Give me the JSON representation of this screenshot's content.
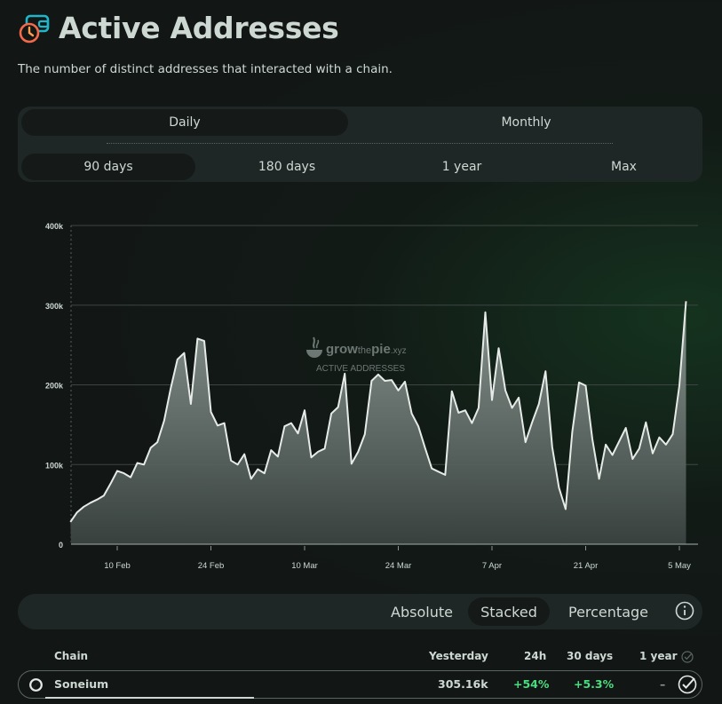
{
  "header": {
    "title": "Active Addresses",
    "description": "The number of distinct addresses that interacted with a chain."
  },
  "timespan": {
    "interval_tabs": [
      "Daily",
      "Monthly"
    ],
    "interval_active": "Daily",
    "range_tabs": [
      "90 days",
      "180 days",
      "1 year",
      "Max"
    ],
    "range_active": "90 days"
  },
  "watermark": {
    "brand_prefix": "grow",
    "brand_mid": "the",
    "brand_pie": "pie",
    "brand_suffix": ".xyz",
    "label": "ACTIVE ADDRESSES"
  },
  "chart_data": {
    "type": "area",
    "ylim": [
      0,
      400000
    ],
    "yticks": [
      0,
      100000,
      200000,
      300000,
      400000
    ],
    "ytick_labels": [
      "0",
      "100k",
      "200k",
      "300k",
      "400k"
    ],
    "xticks": [
      {
        "date": "2025-02-10",
        "label": "10 Feb"
      },
      {
        "date": "2025-02-24",
        "label": "24 Feb"
      },
      {
        "date": "2025-03-10",
        "label": "10 Mar"
      },
      {
        "date": "2025-03-24",
        "label": "24 Mar"
      },
      {
        "date": "2025-04-07",
        "label": "7 Apr"
      },
      {
        "date": "2025-04-21",
        "label": "21 Apr"
      },
      {
        "date": "2025-05-05",
        "label": "5 May"
      }
    ],
    "grid": true,
    "color": "#e6ebe8",
    "series": [
      {
        "name": "Soneium",
        "points": [
          [
            "2025-02-03",
            28000
          ],
          [
            "2025-02-04",
            40000
          ],
          [
            "2025-02-05",
            47000
          ],
          [
            "2025-02-06",
            52000
          ],
          [
            "2025-02-07",
            56000
          ],
          [
            "2025-02-08",
            61000
          ],
          [
            "2025-02-09",
            76000
          ],
          [
            "2025-02-10",
            92000
          ],
          [
            "2025-02-11",
            89000
          ],
          [
            "2025-02-12",
            84000
          ],
          [
            "2025-02-13",
            102000
          ],
          [
            "2025-02-14",
            100000
          ],
          [
            "2025-02-15",
            121000
          ],
          [
            "2025-02-16",
            128000
          ],
          [
            "2025-02-17",
            155000
          ],
          [
            "2025-02-18",
            196000
          ],
          [
            "2025-02-19",
            232000
          ],
          [
            "2025-02-20",
            240000
          ],
          [
            "2025-02-21",
            176000
          ],
          [
            "2025-02-22",
            258000
          ],
          [
            "2025-02-23",
            255000
          ],
          [
            "2025-02-24",
            166000
          ],
          [
            "2025-02-25",
            149000
          ],
          [
            "2025-02-26",
            152000
          ],
          [
            "2025-02-27",
            105000
          ],
          [
            "2025-02-28",
            100000
          ],
          [
            "2025-03-01",
            113000
          ],
          [
            "2025-03-02",
            82000
          ],
          [
            "2025-03-03",
            94000
          ],
          [
            "2025-03-04",
            89000
          ],
          [
            "2025-03-05",
            118000
          ],
          [
            "2025-03-06",
            110000
          ],
          [
            "2025-03-07",
            148000
          ],
          [
            "2025-03-08",
            152000
          ],
          [
            "2025-03-09",
            139000
          ],
          [
            "2025-03-10",
            168000
          ],
          [
            "2025-03-11",
            109000
          ],
          [
            "2025-03-12",
            116000
          ],
          [
            "2025-03-13",
            120000
          ],
          [
            "2025-03-14",
            164000
          ],
          [
            "2025-03-15",
            172000
          ],
          [
            "2025-03-16",
            214000
          ],
          [
            "2025-03-17",
            101000
          ],
          [
            "2025-03-18",
            116000
          ],
          [
            "2025-03-19",
            138000
          ],
          [
            "2025-03-20",
            205000
          ],
          [
            "2025-03-21",
            213000
          ],
          [
            "2025-03-22",
            205000
          ],
          [
            "2025-03-23",
            206000
          ],
          [
            "2025-03-24",
            193000
          ],
          [
            "2025-03-25",
            204000
          ],
          [
            "2025-03-26",
            164000
          ],
          [
            "2025-03-27",
            148000
          ],
          [
            "2025-03-28",
            121000
          ],
          [
            "2025-03-29",
            95000
          ],
          [
            "2025-03-30",
            91000
          ],
          [
            "2025-03-31",
            87000
          ],
          [
            "2025-04-01",
            192000
          ],
          [
            "2025-04-02",
            165000
          ],
          [
            "2025-04-03",
            168000
          ],
          [
            "2025-04-04",
            152000
          ],
          [
            "2025-04-05",
            171000
          ],
          [
            "2025-04-06",
            291000
          ],
          [
            "2025-04-07",
            181000
          ],
          [
            "2025-04-08",
            246000
          ],
          [
            "2025-04-09",
            193000
          ],
          [
            "2025-04-10",
            171000
          ],
          [
            "2025-04-11",
            184000
          ],
          [
            "2025-04-12",
            128000
          ],
          [
            "2025-04-13",
            153000
          ],
          [
            "2025-04-14",
            176000
          ],
          [
            "2025-04-15",
            217000
          ],
          [
            "2025-04-16",
            122000
          ],
          [
            "2025-04-17",
            71000
          ],
          [
            "2025-04-18",
            44000
          ],
          [
            "2025-04-19",
            141000
          ],
          [
            "2025-04-20",
            203000
          ],
          [
            "2025-04-21",
            199000
          ],
          [
            "2025-04-22",
            132000
          ],
          [
            "2025-04-23",
            82000
          ],
          [
            "2025-04-24",
            125000
          ],
          [
            "2025-04-25",
            112000
          ],
          [
            "2025-04-26",
            129000
          ],
          [
            "2025-04-27",
            146000
          ],
          [
            "2025-04-28",
            107000
          ],
          [
            "2025-04-29",
            120000
          ],
          [
            "2025-04-30",
            153000
          ],
          [
            "2025-05-01",
            114000
          ],
          [
            "2025-05-02",
            134000
          ],
          [
            "2025-05-03",
            125000
          ],
          [
            "2025-05-04",
            138000
          ],
          [
            "2025-05-05",
            199000
          ],
          [
            "2025-05-06",
            305000
          ]
        ]
      }
    ]
  },
  "modes": {
    "items": [
      "Absolute",
      "Stacked",
      "Percentage"
    ],
    "active": "Stacked"
  },
  "table": {
    "headers": {
      "chain": "Chain",
      "yesterday": "Yesterday",
      "h24": "24h",
      "d30": "30 days",
      "y1": "1 year"
    },
    "rows": [
      {
        "chain": "Soneium",
        "yesterday": "305.16k",
        "h24": "+54%",
        "d30": "+5.3%",
        "y1": "–",
        "selected": true
      }
    ]
  }
}
